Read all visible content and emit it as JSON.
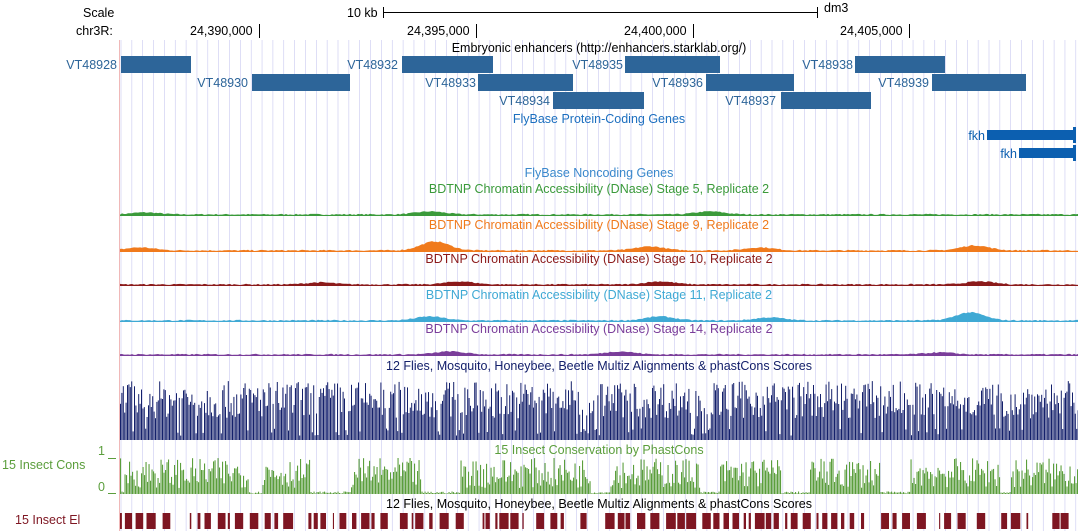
{
  "ruler": {
    "scale_label": "Scale",
    "chrom_label": "chr3R:",
    "scalebar_label": "10 kb",
    "assembly": "dm3",
    "positions": [
      "24,390,000",
      "24,395,000",
      "24,400,000",
      "24,405,000"
    ]
  },
  "tracks": {
    "enhancers_title": "Embryonic enhancers (http://enhancers.starklab.org/)",
    "enhancers": [
      "VT48928",
      "VT48930",
      "VT48932",
      "VT48933",
      "VT48934",
      "VT48935",
      "VT48936",
      "VT48937",
      "VT48938",
      "VT48939"
    ],
    "genes_title": "FlyBase Protein-Coding Genes",
    "genes": [
      "fkh",
      "fkh"
    ],
    "noncoding_title": "FlyBase Noncoding Genes",
    "dnase": [
      {
        "title": "BDTNP Chromatin Accessibility (DNase) Stage 5, Replicate 2",
        "color": "#3a9a3a"
      },
      {
        "title": "BDTNP Chromatin Accessibility (DNase) Stage 9, Replicate 2",
        "color": "#f07a1c"
      },
      {
        "title": "BDTNP Chromatin Accessibility (DNase) Stage 10, Replicate 2",
        "color": "#8b1a1a"
      },
      {
        "title": "BDTNP Chromatin Accessibility (DNase) Stage 11, Replicate 2",
        "color": "#3fa9d4"
      },
      {
        "title": "BDTNP Chromatin Accessibility (DNase) Stage 14, Replicate 2",
        "color": "#7a3d9a"
      }
    ],
    "multiz_title": "12 Flies, Mosquito, Honeybee, Beetle Multiz Alignments & phastCons Scores",
    "insect_cons_title": "15 Insect Conservation by PhastCons",
    "insect_cons_label": "15 Insect Cons",
    "insect_cons_max": "1",
    "insect_cons_min": "0",
    "multiz_title2": "12 Flies, Mosquito, Honeybee, Beetle Multiz Alignments & phastCons Scores",
    "insect_el_label": "15 Insect El"
  },
  "colors": {
    "enhancer": "#2d6599",
    "gene": "#0c5fb0",
    "multiz": "#14206b",
    "insect_cons": "#5b9e3c",
    "insect_el": "#7e1622",
    "grid": "#c8c8f0"
  }
}
